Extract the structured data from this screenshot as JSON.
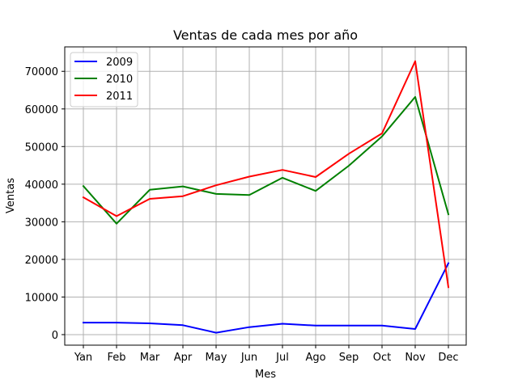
{
  "chart_data": {
    "type": "line",
    "title": "Ventas de cada mes por año",
    "xlabel": "Mes",
    "ylabel": "Ventas",
    "categories": [
      "Yan",
      "Feb",
      "Mar",
      "Apr",
      "May",
      "Jun",
      "Jul",
      "Ago",
      "Sep",
      "Oct",
      "Nov",
      "Dec"
    ],
    "ylim": [
      -2800,
      76500
    ],
    "yticks": [
      0,
      10000,
      20000,
      30000,
      40000,
      50000,
      60000,
      70000
    ],
    "grid": true,
    "legend_position": "top-left",
    "series": [
      {
        "name": "2009",
        "color": "#0000ff",
        "values": [
          3200,
          3200,
          3000,
          2500,
          500,
          2000,
          2900,
          2400,
          2400,
          2400,
          1500,
          19000
        ]
      },
      {
        "name": "2010",
        "color": "#008000",
        "values": [
          39500,
          29500,
          38500,
          39400,
          37400,
          37100,
          41700,
          38200,
          44900,
          52700,
          63200,
          32000
        ]
      },
      {
        "name": "2011",
        "color": "#ff0000",
        "values": [
          36500,
          31500,
          36100,
          36800,
          39700,
          42000,
          43800,
          41900,
          48100,
          53500,
          72700,
          12600
        ]
      }
    ]
  }
}
